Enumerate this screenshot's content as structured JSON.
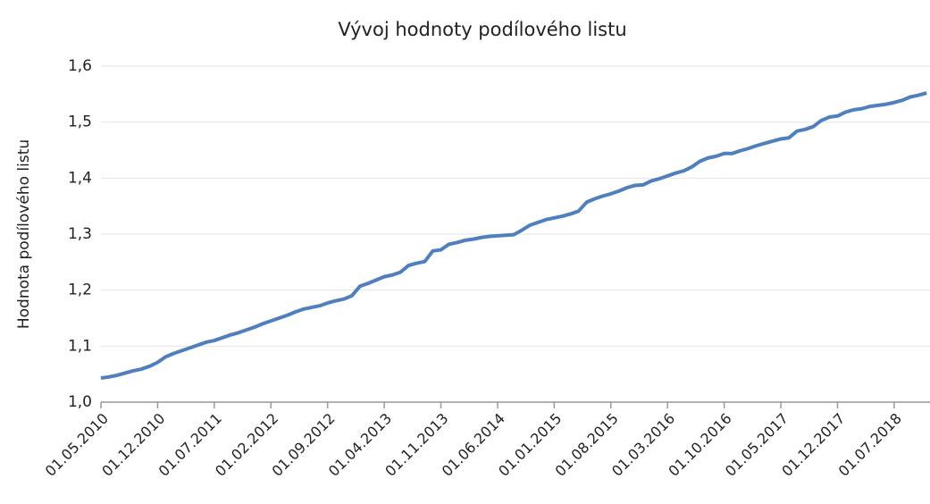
{
  "chart_data": {
    "type": "line",
    "title": "Vývoj hodnoty podílového listu",
    "ylabel": "Hodnota podílového listu",
    "color": "#4f7fbf",
    "grid": true,
    "ylim": [
      1.0,
      1.6
    ],
    "yticks": [
      {
        "value": 1.0,
        "label": "1,0"
      },
      {
        "value": 1.1,
        "label": "1,1"
      },
      {
        "value": 1.2,
        "label": "1,2"
      },
      {
        "value": 1.3,
        "label": "1,3"
      },
      {
        "value": 1.4,
        "label": "1,4"
      },
      {
        "value": 1.5,
        "label": "1,5"
      },
      {
        "value": 1.6,
        "label": "1,6"
      }
    ],
    "categories": [
      "01.05.2010",
      null,
      null,
      null,
      null,
      null,
      null,
      "01.12.2010",
      null,
      null,
      null,
      null,
      null,
      null,
      "01.07.2011",
      null,
      null,
      null,
      null,
      null,
      null,
      "01.02.2012",
      null,
      null,
      null,
      null,
      null,
      null,
      "01.09.2012",
      null,
      null,
      null,
      null,
      null,
      null,
      "01.04.2013",
      null,
      null,
      null,
      null,
      null,
      null,
      "01.11.2013",
      null,
      null,
      null,
      null,
      null,
      null,
      "01.06.2014",
      null,
      null,
      null,
      null,
      null,
      null,
      "01.01.2015",
      null,
      null,
      null,
      null,
      null,
      null,
      "01.08.2015",
      null,
      null,
      null,
      null,
      null,
      null,
      "01.03.2016",
      null,
      null,
      null,
      null,
      null,
      null,
      "01.10.2016",
      null,
      null,
      null,
      null,
      null,
      null,
      "01.05.2017",
      null,
      null,
      null,
      null,
      null,
      null,
      "01.12.2017",
      null,
      null,
      null,
      null,
      null,
      null,
      "01.07.2018",
      null,
      null,
      null,
      null
    ],
    "values": [
      1.043,
      1.045,
      1.048,
      1.052,
      1.056,
      1.059,
      1.064,
      1.071,
      1.081,
      1.087,
      1.092,
      1.097,
      1.102,
      1.107,
      1.11,
      1.115,
      1.12,
      1.124,
      1.129,
      1.134,
      1.14,
      1.145,
      1.15,
      1.155,
      1.161,
      1.166,
      1.169,
      1.172,
      1.177,
      1.181,
      1.184,
      1.19,
      1.207,
      1.212,
      1.218,
      1.224,
      1.227,
      1.232,
      1.244,
      1.248,
      1.251,
      1.27,
      1.272,
      1.282,
      1.285,
      1.289,
      1.291,
      1.294,
      1.296,
      1.297,
      1.298,
      1.299,
      1.307,
      1.316,
      1.321,
      1.326,
      1.329,
      1.332,
      1.336,
      1.341,
      1.357,
      1.363,
      1.368,
      1.372,
      1.377,
      1.383,
      1.387,
      1.388,
      1.395,
      1.399,
      1.404,
      1.409,
      1.413,
      1.42,
      1.43,
      1.436,
      1.439,
      1.444,
      1.444,
      1.449,
      1.453,
      1.458,
      1.462,
      1.466,
      1.47,
      1.472,
      1.484,
      1.487,
      1.492,
      1.503,
      1.509,
      1.511,
      1.518,
      1.522,
      1.524,
      1.528,
      1.53,
      1.532,
      1.535,
      1.539,
      1.545,
      1.548,
      1.552
    ]
  }
}
